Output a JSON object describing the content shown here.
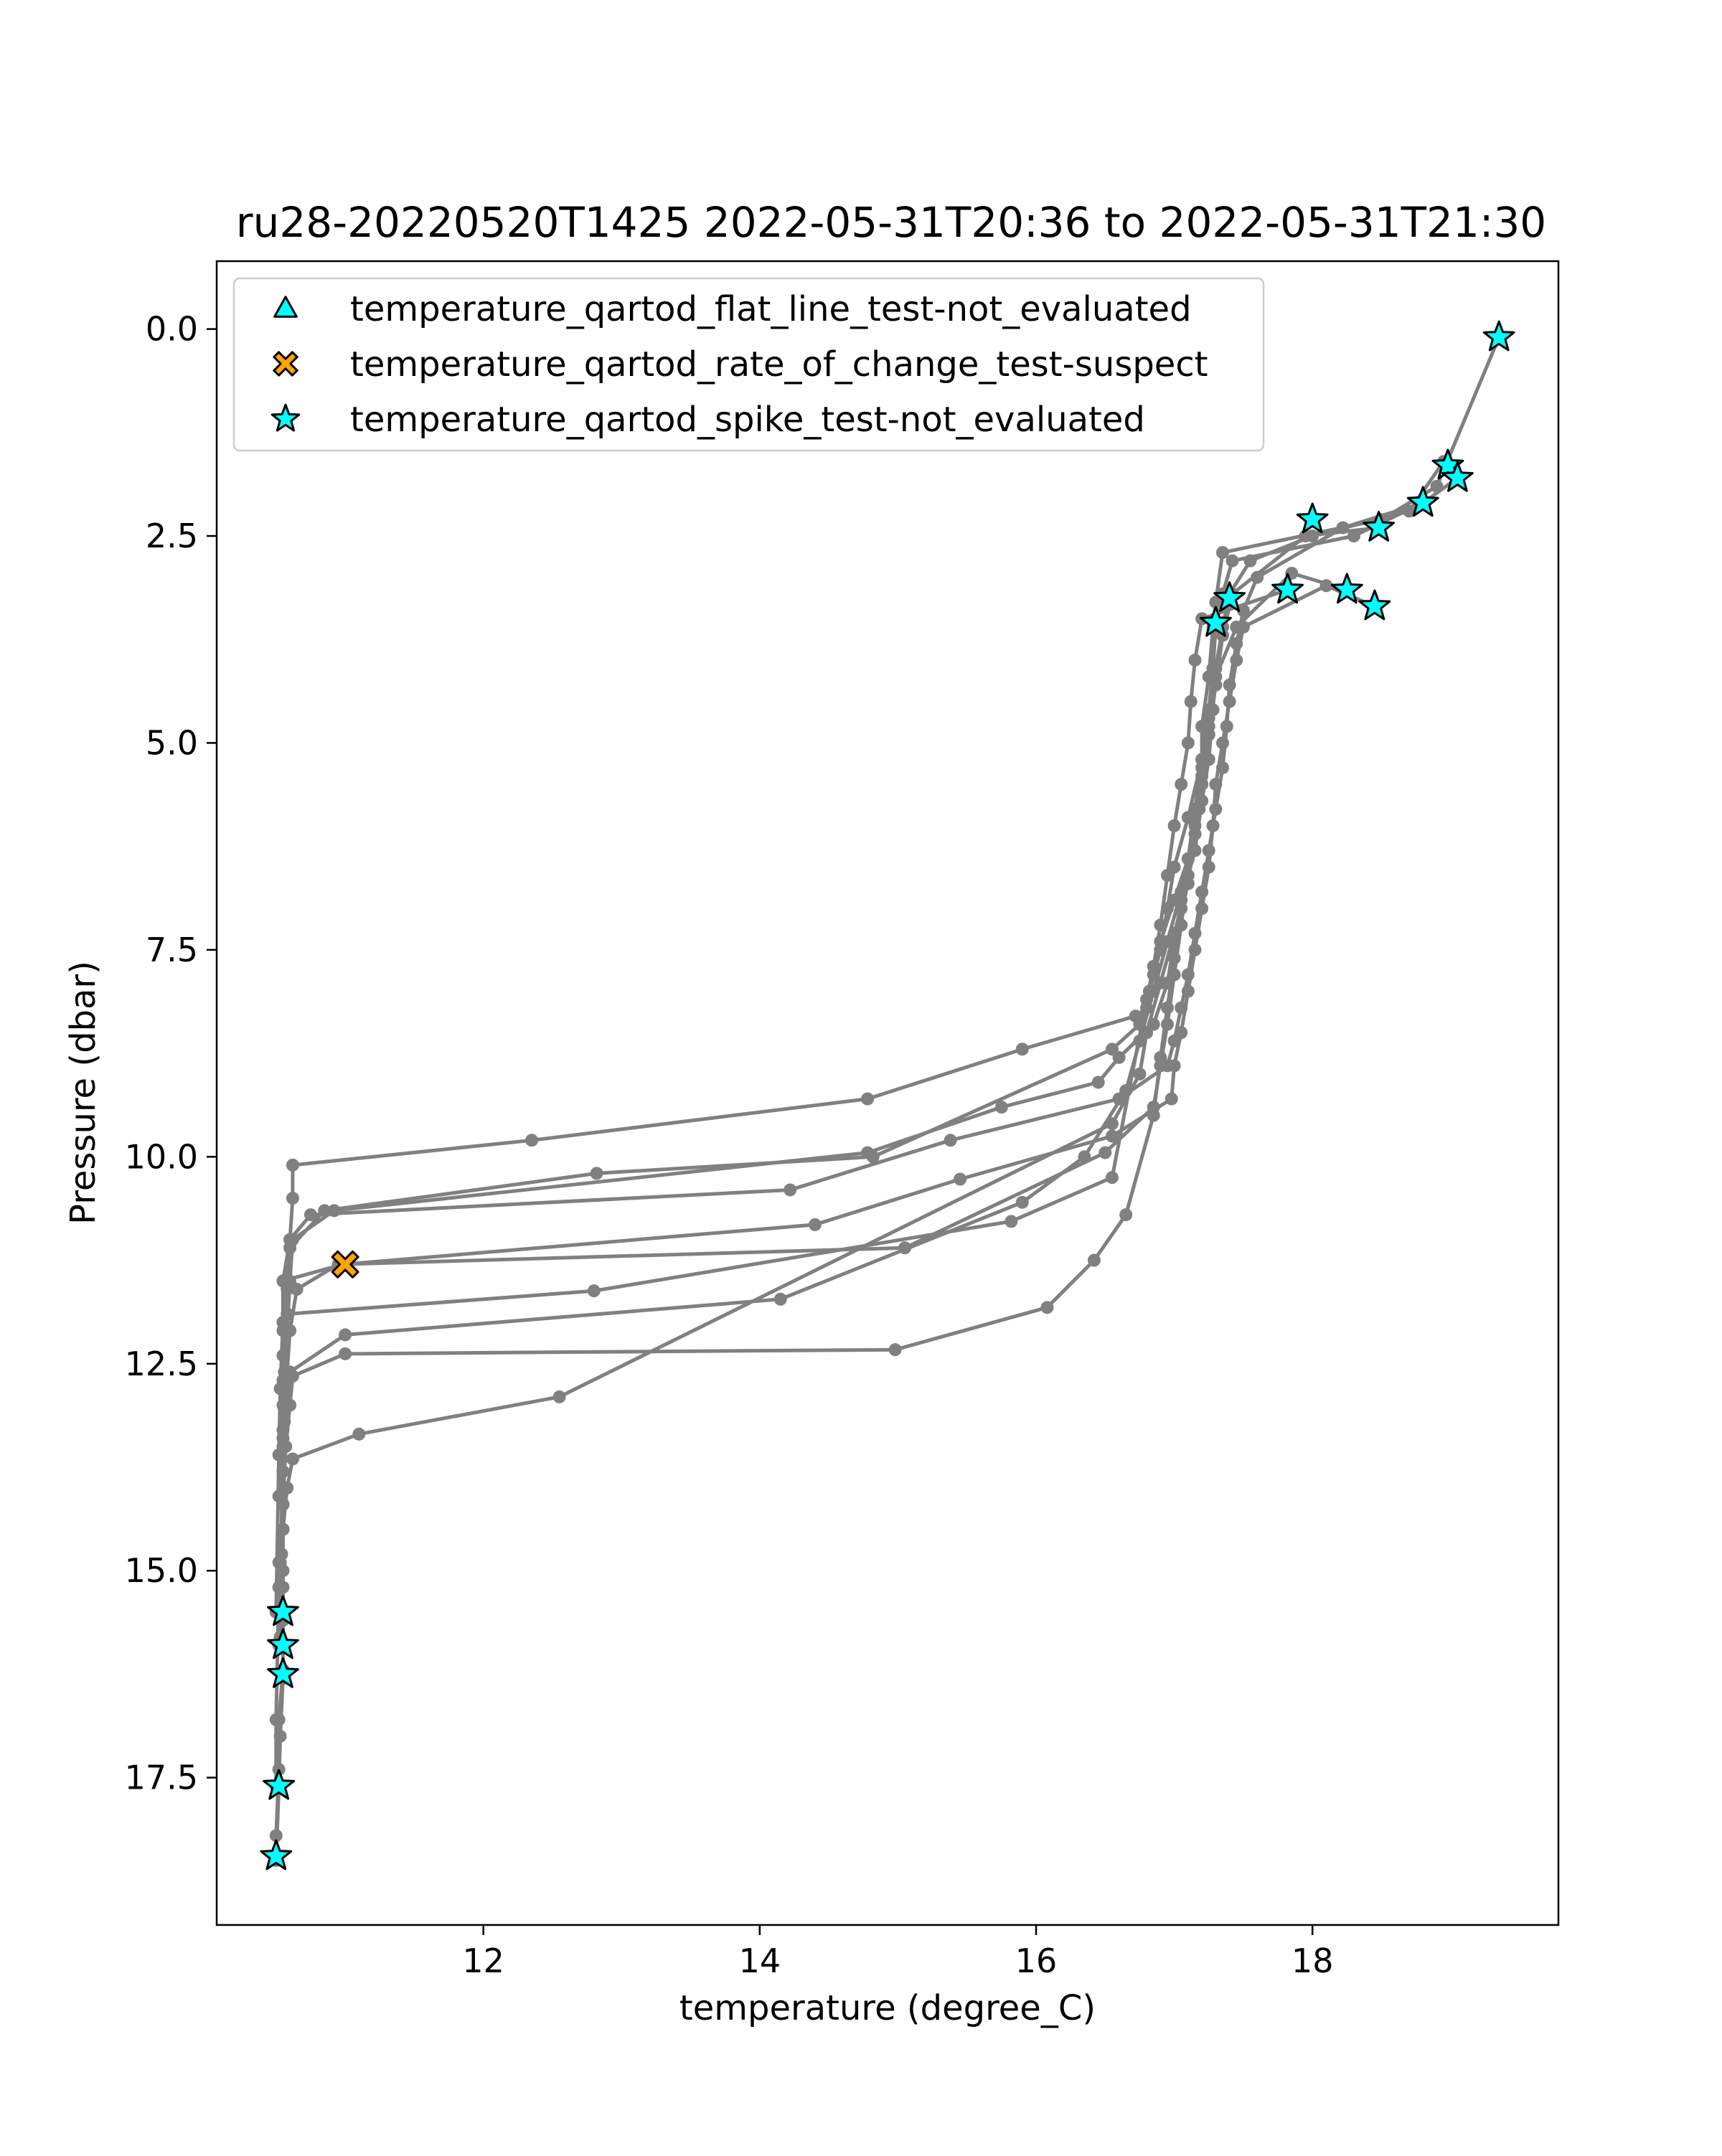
{
  "chart_data": {
    "type": "line",
    "title": "ru28-20220520T1425 2022-05-31T20:36 to 2022-05-31T21:30",
    "xlabel": "temperature (degree_C)",
    "ylabel": "Pressure (dbar)",
    "xlim": [
      10.07,
      19.78
    ],
    "ylim": [
      19.28,
      -0.82
    ],
    "y_inverted": true,
    "xticks": [
      12,
      14,
      16,
      18
    ],
    "xtick_labels": [
      "12",
      "14",
      "16",
      "18"
    ],
    "yticks": [
      0.0,
      2.5,
      5.0,
      7.5,
      10.0,
      12.5,
      15.0,
      17.5
    ],
    "ytick_labels": [
      "0.0",
      "2.5",
      "5.0",
      "7.5",
      "10.0",
      "12.5",
      "15.0",
      "17.5"
    ],
    "grid": false,
    "legend_position": "upper-left",
    "line_color": "#808080",
    "profiles": [
      {
        "temp": [
          19.35,
          18.9,
          18.5,
          17.35,
          17.3,
          17.28,
          17.25,
          17.2,
          17.2,
          17.18,
          17.1,
          17.0,
          16.9,
          16.85,
          16.8,
          16.72,
          15.9,
          14.78,
          12.35,
          10.62,
          10.62,
          10.6,
          10.55,
          10.55,
          10.55,
          10.55,
          10.55,
          10.52,
          10.55,
          10.55,
          10.55,
          10.53,
          10.52,
          10.5
        ],
        "pressure": [
          0.1,
          1.9,
          2.3,
          2.7,
          3.3,
          3.6,
          4.2,
          4.8,
          5.3,
          5.8,
          6.4,
          6.9,
          7.4,
          7.8,
          8.2,
          8.3,
          8.7,
          9.3,
          9.8,
          10.1,
          10.5,
          11.0,
          11.5,
          12.1,
          12.8,
          13.5,
          14.2,
          14.9,
          15.5,
          15.9,
          16.3,
          17.0,
          17.6,
          18.5
        ]
      },
      {
        "temp": [
          19.05,
          18.8,
          18.3,
          17.42,
          17.35,
          17.3,
          17.28,
          17.25,
          17.2,
          17.1,
          17.0,
          16.95,
          16.9,
          16.82,
          16.75,
          16.55,
          14.82,
          12.82,
          10.85,
          10.6,
          10.58,
          10.57,
          10.56,
          10.55,
          10.55,
          10.54,
          10.55
        ],
        "pressure": [
          1.8,
          2.1,
          2.5,
          2.8,
          3.2,
          3.6,
          4.1,
          4.7,
          5.2,
          5.9,
          6.5,
          7.0,
          7.5,
          8.0,
          8.4,
          8.7,
          10.0,
          10.2,
          10.65,
          11.1,
          11.6,
          12.1,
          12.6,
          13.3,
          14.0,
          14.8,
          15.5
        ]
      },
      {
        "temp": [
          18.95,
          18.7,
          18.0,
          17.55,
          17.4,
          17.35,
          17.3,
          17.28,
          17.25,
          17.2,
          17.15,
          17.05,
          17.0,
          16.95,
          16.85,
          16.6,
          16.45,
          15.75,
          14.78,
          10.92,
          10.62,
          10.6,
          10.58,
          10.56,
          10.55,
          10.55,
          10.52
        ],
        "pressure": [
          1.6,
          2.2,
          2.5,
          2.8,
          3.2,
          3.6,
          4.1,
          4.6,
          5.2,
          5.7,
          6.3,
          6.9,
          7.4,
          7.9,
          8.4,
          8.8,
          9.1,
          9.4,
          9.95,
          10.65,
          11.0,
          11.5,
          12.1,
          12.8,
          13.5,
          14.2,
          15.9
        ]
      },
      {
        "temp": [
          18.8,
          18.22,
          17.6,
          17.5,
          17.45,
          17.4,
          17.38,
          17.35,
          17.3,
          17.25,
          17.2,
          17.15,
          17.1,
          17.05,
          17.0,
          16.95,
          16.6,
          15.38,
          14.22,
          10.75,
          10.6,
          10.58,
          10.55,
          10.55,
          10.55,
          10.52
        ],
        "pressure": [
          2.1,
          2.4,
          3.0,
          3.4,
          3.8,
          4.3,
          4.8,
          5.3,
          5.8,
          6.3,
          6.8,
          7.3,
          7.8,
          8.2,
          8.6,
          8.9,
          9.3,
          9.8,
          10.4,
          10.7,
          11.0,
          11.5,
          12.0,
          12.7,
          13.4,
          14.1
        ]
      },
      {
        "temp": [
          18.45,
          18.1,
          17.5,
          17.45,
          17.4,
          17.35,
          17.3,
          17.28,
          17.25,
          17.2,
          17.15,
          17.1,
          17.05,
          17.0,
          16.98,
          16.55,
          15.45,
          14.4,
          10.98,
          10.55,
          10.55,
          10.53,
          10.52,
          10.5
        ],
        "pressure": [
          3.35,
          3.1,
          3.6,
          4.0,
          4.5,
          5.0,
          5.5,
          6.0,
          6.5,
          7.0,
          7.5,
          8.0,
          8.5,
          8.9,
          9.3,
          9.75,
          10.27,
          10.82,
          11.3,
          11.5,
          12.0,
          12.8,
          13.6,
          15.5
        ]
      },
      {
        "temp": [
          18.25,
          17.85,
          17.45,
          17.3,
          17.25,
          17.2,
          17.15,
          17.1,
          17.05,
          17.0,
          16.95,
          16.9,
          16.85,
          16.5,
          15.05,
          10.95,
          10.65,
          10.6,
          10.58,
          10.56,
          10.55,
          10.55,
          10.55
        ],
        "pressure": [
          3.15,
          2.95,
          3.6,
          4.2,
          4.8,
          5.4,
          6.0,
          6.6,
          7.2,
          7.8,
          8.4,
          8.9,
          9.4,
          9.95,
          11.1,
          11.3,
          11.6,
          12.1,
          12.6,
          13.2,
          13.8,
          14.5,
          15.2
        ]
      },
      {
        "temp": [
          17.82,
          17.2,
          17.15,
          17.12,
          17.1,
          17.05,
          17.0,
          16.95,
          16.9,
          16.85,
          16.8,
          16.55,
          15.82,
          12.8,
          10.58,
          10.55,
          10.55,
          10.53
        ],
        "pressure": [
          3.15,
          3.5,
          4.0,
          4.5,
          5.0,
          5.5,
          6.0,
          6.6,
          7.2,
          7.7,
          8.1,
          10.25,
          10.78,
          11.62,
          11.9,
          12.4,
          13.0,
          15.8
        ]
      },
      {
        "temp": [
          18.48,
          17.95,
          17.42,
          17.35,
          17.3,
          17.25,
          17.2,
          17.15,
          17.05,
          16.95,
          16.85,
          16.75,
          16.65,
          16.35,
          15.9,
          14.15,
          11.0,
          10.6,
          10.58,
          10.55,
          10.55,
          10.52,
          10.5,
          10.5
        ],
        "pressure": [
          2.4,
          2.5,
          3.2,
          3.7,
          4.3,
          4.9,
          5.5,
          6.1,
          6.8,
          7.4,
          8.0,
          8.6,
          9.2,
          10.0,
          10.55,
          11.72,
          12.15,
          12.6,
          13.0,
          13.8,
          14.5,
          15.2,
          16.8,
          17.6
        ]
      },
      {
        "temp": [
          17.3,
          17.28,
          17.25,
          17.2,
          17.15,
          17.1,
          17.05,
          17.0,
          16.95,
          16.9,
          16.85,
          16.65,
          16.42,
          16.08,
          14.98,
          11.0,
          10.62,
          10.6,
          10.57,
          10.55,
          10.53,
          10.52
        ],
        "pressure": [
          3.55,
          4.1,
          4.6,
          5.2,
          5.8,
          6.4,
          7.0,
          7.6,
          8.2,
          8.8,
          9.5,
          10.7,
          11.25,
          11.82,
          12.33,
          12.38,
          12.65,
          13.0,
          13.5,
          14.2,
          14.9,
          15.5
        ]
      },
      {
        "temp": [
          17.4,
          17.35,
          17.3,
          17.25,
          17.2,
          17.15,
          17.1,
          17.0,
          16.9,
          16.8,
          16.75,
          16.55,
          12.55,
          11.1,
          10.62,
          10.58,
          10.55,
          10.55,
          10.55,
          10.55,
          10.52,
          10.52,
          10.5
        ],
        "pressure": [
          3.25,
          3.7,
          4.3,
          4.9,
          5.5,
          6.1,
          6.7,
          7.3,
          7.9,
          8.5,
          9.0,
          9.6,
          12.9,
          13.35,
          13.65,
          14.0,
          14.5,
          15.0,
          15.6,
          16.2,
          16.8,
          17.4,
          18.2
        ]
      }
    ],
    "series": [
      {
        "name": "temperature_qartod_flat_line_test-not_evaluated",
        "marker": "triangle",
        "color": "#00ffff",
        "temp": [],
        "pressure": []
      },
      {
        "name": "temperature_qartod_rate_of_change_test-suspect",
        "marker": "x-filled",
        "color": "#ffa500",
        "temp": [
          11.0
        ],
        "pressure": [
          11.3
        ]
      },
      {
        "name": "temperature_qartod_spike_test-not_evaluated",
        "marker": "star",
        "color": "#00ffff",
        "temp": [
          19.35,
          18.98,
          19.05,
          18.8,
          18.48,
          18.0,
          17.82,
          18.25,
          18.45,
          17.4,
          17.3,
          10.55,
          10.55,
          10.55,
          10.52,
          10.5
        ],
        "pressure": [
          0.1,
          1.65,
          1.8,
          2.1,
          2.4,
          2.3,
          3.15,
          3.15,
          3.35,
          3.25,
          3.55,
          15.5,
          15.9,
          16.25,
          17.6,
          18.45
        ]
      }
    ]
  }
}
